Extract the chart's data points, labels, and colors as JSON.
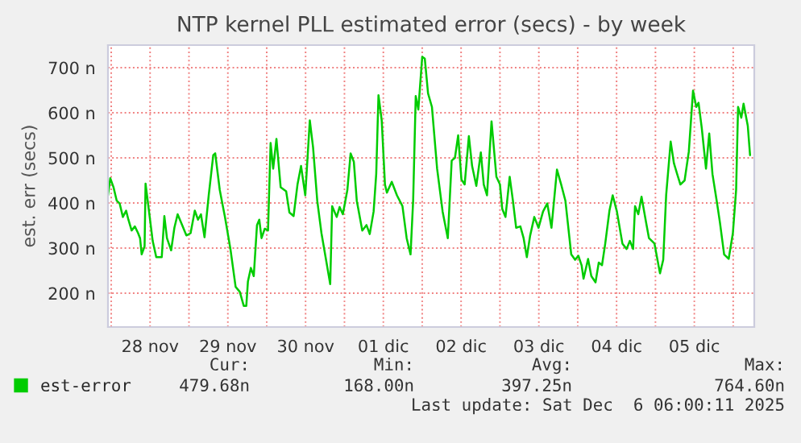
{
  "chart_data": {
    "type": "line",
    "title": "NTP kernel PLL estimated error (secs) - by week",
    "ylabel": "est. err (secs)",
    "x": [
      "2025-11-27T23:00",
      "2025-11-27T23:42",
      "2025-11-28T00:42",
      "2025-11-28T01:42",
      "2025-11-28T02:36",
      "2025-11-28T03:36",
      "2025-11-28T04:36",
      "2025-11-28T05:18",
      "2025-11-28T06:18",
      "2025-11-28T07:18",
      "2025-11-28T08:18",
      "2025-11-28T08:54",
      "2025-11-28T09:24",
      "2025-11-28T10:18",
      "2025-11-28T10:36",
      "2025-11-28T12:48",
      "2025-11-28T13:54",
      "2025-11-28T15:36",
      "2025-11-28T16:24",
      "2025-11-28T17:12",
      "2025-11-28T18:30",
      "2025-11-28T19:30",
      "2025-11-28T20:30",
      "2025-11-28T21:54",
      "2025-11-28T23:12",
      "2025-11-29T00:30",
      "2025-11-29T01:48",
      "2025-11-29T02:48",
      "2025-11-29T03:42",
      "2025-11-29T04:48",
      "2025-11-29T06:06",
      "2025-11-29T07:30",
      "2025-11-29T08:06",
      "2025-11-29T09:30",
      "2025-11-29T11:06",
      "2025-11-29T12:48",
      "2025-11-29T14:24",
      "2025-11-29T15:42",
      "2025-11-29T16:54",
      "2025-11-29T17:42",
      "2025-11-29T18:12",
      "2025-11-29T19:06",
      "2025-11-29T20:00",
      "2025-11-29T21:00",
      "2025-11-29T21:42",
      "2025-11-29T22:24",
      "2025-11-29T23:24",
      "2025-11-30T00:24",
      "2025-11-30T01:12",
      "2025-11-30T02:00",
      "2025-11-30T03:00",
      "2025-11-30T04:18",
      "2025-11-30T06:00",
      "2025-11-30T07:00",
      "2025-11-30T08:18",
      "2025-11-30T09:30",
      "2025-11-30T10:36",
      "2025-11-30T11:54",
      "2025-11-30T13:18",
      "2025-11-30T14:18",
      "2025-11-30T15:36",
      "2025-11-30T16:54",
      "2025-11-30T18:36",
      "2025-11-30T19:36",
      "2025-11-30T20:12",
      "2025-11-30T21:36",
      "2025-11-30T22:30",
      "2025-11-30T23:30",
      "2025-12-01T00:54",
      "2025-12-01T01:54",
      "2025-12-01T02:54",
      "2025-12-01T03:48",
      "2025-12-01T05:30",
      "2025-12-01T06:48",
      "2025-12-01T07:48",
      "2025-12-01T09:00",
      "2025-12-01T09:48",
      "2025-12-01T10:30",
      "2025-12-01T11:30",
      "2025-12-01T12:30",
      "2025-12-01T13:06",
      "2025-12-01T14:36",
      "2025-12-01T16:12",
      "2025-12-01T17:54",
      "2025-12-01T19:12",
      "2025-12-01T20:24",
      "2025-12-01T21:12",
      "2025-12-01T22:00",
      "2025-12-01T22:48",
      "2025-12-02T00:00",
      "2025-12-02T00:48",
      "2025-12-02T01:48",
      "2025-12-02T03:00",
      "2025-12-02T04:36",
      "2025-12-02T06:18",
      "2025-12-02T07:54",
      "2025-12-02T09:06",
      "2025-12-02T10:06",
      "2025-12-02T11:06",
      "2025-12-02T12:06",
      "2025-12-02T13:06",
      "2025-12-02T14:24",
      "2025-12-02T15:24",
      "2025-12-02T16:42",
      "2025-12-02T18:06",
      "2025-12-02T19:00",
      "2025-12-02T20:00",
      "2025-12-02T21:24",
      "2025-12-02T22:54",
      "2025-12-03T00:00",
      "2025-12-03T00:42",
      "2025-12-03T01:42",
      "2025-12-03T03:00",
      "2025-12-03T04:00",
      "2025-12-03T05:00",
      "2025-12-03T06:18",
      "2025-12-03T07:18",
      "2025-12-03T08:18",
      "2025-12-03T09:18",
      "2025-12-03T10:36",
      "2025-12-03T11:54",
      "2025-12-03T13:18",
      "2025-12-03T14:36",
      "2025-12-03T15:54",
      "2025-12-03T17:36",
      "2025-12-03T18:54",
      "2025-12-03T20:12",
      "2025-12-03T22:00",
      "2025-12-03T23:12",
      "2025-12-04T00:12",
      "2025-12-04T01:12",
      "2025-12-04T01:48",
      "2025-12-04T03:12",
      "2025-12-04T04:12",
      "2025-12-04T05:30",
      "2025-12-04T06:30",
      "2025-12-04T07:30",
      "2025-12-04T08:30",
      "2025-12-04T09:48",
      "2025-12-04T10:48",
      "2025-12-04T12:06",
      "2025-12-04T13:48",
      "2025-12-04T15:06",
      "2025-12-04T16:06",
      "2025-12-04T17:06",
      "2025-12-04T17:42",
      "2025-12-04T18:42",
      "2025-12-04T19:42",
      "2025-12-04T21:06",
      "2025-12-04T22:00",
      "2025-12-04T23:42",
      "2025-12-05T01:24",
      "2025-12-05T02:24",
      "2025-12-05T03:18",
      "2025-12-05T04:42",
      "2025-12-05T05:42",
      "2025-12-05T06:42",
      "2025-12-05T07:42",
      "2025-12-05T09:00",
      "2025-12-05T10:18",
      "2025-12-05T11:36",
      "2025-12-05T12:36",
      "2025-12-05T13:18",
      "2025-12-05T14:18",
      "2025-12-05T15:36",
      "2025-12-05T16:36",
      "2025-12-05T17:36",
      "2025-12-05T18:54",
      "2025-12-05T19:54",
      "2025-12-05T21:12",
      "2025-12-05T22:36",
      "2025-12-05T23:54",
      "2025-12-06T00:54",
      "2025-12-06T01:30",
      "2025-12-06T02:30",
      "2025-12-06T03:12",
      "2025-12-06T04:30",
      "2025-12-06T05:12"
    ],
    "series": [
      {
        "name": "est-error",
        "color": "#00cc00",
        "values": [
          417,
          455,
          435,
          405,
          399,
          369,
          383,
          363,
          339,
          348,
          333,
          322,
          286,
          304,
          443,
          316,
          280,
          280,
          371,
          322,
          295,
          345,
          375,
          351,
          328,
          333,
          383,
          363,
          375,
          324,
          417,
          506,
          510,
          429,
          369,
          298,
          214,
          203,
          172,
          172,
          226,
          256,
          238,
          351,
          363,
          322,
          343,
          339,
          533,
          476,
          542,
          435,
          426,
          379,
          371,
          441,
          482,
          417,
          583,
          524,
          405,
          333,
          262,
          220,
          393,
          369,
          391,
          375,
          429,
          510,
          491,
          405,
          339,
          351,
          331,
          381,
          464,
          639,
          583,
          441,
          423,
          447,
          417,
          393,
          322,
          286,
          405,
          637,
          607,
          724,
          720,
          643,
          613,
          476,
          381,
          322,
          494,
          500,
          550,
          452,
          441,
          548,
          482,
          438,
          512,
          441,
          417,
          581,
          458,
          441,
          387,
          369,
          458,
          405,
          345,
          348,
          322,
          280,
          327,
          369,
          345,
          381,
          399,
          345,
          474,
          441,
          405,
          286,
          274,
          283,
          262,
          232,
          276,
          238,
          224,
          268,
          262,
          310,
          383,
          417,
          381,
          310,
          298,
          316,
          298,
          393,
          375,
          414,
          357,
          322,
          310,
          244,
          274,
          417,
          536,
          488,
          464,
          441,
          450,
          514,
          649,
          613,
          622,
          566,
          476,
          554,
          464,
          405,
          357,
          286,
          276,
          333,
          429,
          613,
          589,
          620,
          571,
          506
        ]
      }
    ],
    "xlim": [
      "2025-11-27T23:00",
      "2025-12-06T06:30"
    ],
    "xticks": [
      {
        "value": "2025-11-28T00:00",
        "label": null
      },
      {
        "value": "2025-11-28T12:00",
        "label": "28 nov"
      },
      {
        "value": "2025-11-29T00:00",
        "label": null
      },
      {
        "value": "2025-11-29T12:00",
        "label": "29 nov"
      },
      {
        "value": "2025-11-30T00:00",
        "label": null
      },
      {
        "value": "2025-11-30T12:00",
        "label": "30 nov"
      },
      {
        "value": "2025-12-01T00:00",
        "label": null
      },
      {
        "value": "2025-12-01T12:00",
        "label": "01 dic"
      },
      {
        "value": "2025-12-02T00:00",
        "label": null
      },
      {
        "value": "2025-12-02T12:00",
        "label": "02 dic"
      },
      {
        "value": "2025-12-03T00:00",
        "label": null
      },
      {
        "value": "2025-12-03T12:00",
        "label": "03 dic"
      },
      {
        "value": "2025-12-04T00:00",
        "label": null
      },
      {
        "value": "2025-12-04T12:00",
        "label": "04 dic"
      },
      {
        "value": "2025-12-05T00:00",
        "label": null
      },
      {
        "value": "2025-12-05T12:00",
        "label": "05 dic"
      },
      {
        "value": "2025-12-06T00:00",
        "label": null
      }
    ],
    "ylim": [
      125,
      750
    ],
    "yticks": [
      {
        "value": 200,
        "label": "200 n"
      },
      {
        "value": 300,
        "label": "300 n"
      },
      {
        "value": 400,
        "label": "400 n"
      },
      {
        "value": 500,
        "label": "500 n"
      },
      {
        "value": 600,
        "label": "600 n"
      },
      {
        "value": 700,
        "label": "700 n"
      }
    ],
    "grid": true,
    "legend": "bottom",
    "marker": "none",
    "line_style": "solid",
    "annotations": [
      "Cur:",
      "479.68n",
      "Min:",
      "168.00n",
      "Avg:",
      "397.25n",
      "Max:",
      "764.60n",
      "Last update: Sat Dec  6 06:00:11 2025"
    ]
  }
}
